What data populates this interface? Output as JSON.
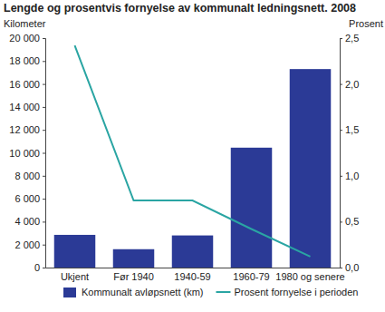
{
  "chart_data": {
    "type": "bar",
    "title": "Lengde og prosentvis fornyelse av kommunalt ledningsnett. 2008",
    "ylabel": "Kilometer",
    "y2label": "Prosent",
    "categories": [
      "Ukjent",
      "Før 1940",
      "1940-59",
      "1960-79",
      "1980 og senere"
    ],
    "series": [
      {
        "name": "Kommunalt avløpsnett (km)",
        "type": "bar",
        "color": "#2b3a96",
        "values": [
          2850,
          1600,
          2800,
          10450,
          17300
        ]
      },
      {
        "name": "Prosent fornyelse i perioden",
        "type": "line",
        "axis": "y2",
        "color": "#2aa5a3",
        "values": [
          2.42,
          0.73,
          0.73,
          0.42,
          0.12
        ]
      }
    ],
    "ylim": [
      0,
      20000
    ],
    "yticks": [
      0,
      {
        "value": 2000,
        "label": "2 000"
      },
      {
        "value": 4000,
        "label": "4 000"
      },
      {
        "value": 6000,
        "label": "6 000"
      },
      {
        "value": 8000,
        "label": "8 000"
      },
      {
        "value": 10000,
        "label": "10 000"
      },
      {
        "value": 12000,
        "label": "12 000"
      },
      {
        "value": 14000,
        "label": "14 000"
      },
      {
        "value": 16000,
        "label": "16 000"
      },
      {
        "value": 18000,
        "label": "18 000"
      },
      {
        "value": 20000,
        "label": "20 000"
      }
    ],
    "y2lim": [
      0,
      2.5
    ],
    "y2ticks": [
      {
        "value": 0,
        "label": "0,0"
      },
      {
        "value": 0.5,
        "label": "0,5"
      },
      {
        "value": 1,
        "label": "1,0"
      },
      {
        "value": 1.5,
        "label": "1,5"
      },
      {
        "value": 2,
        "label": "2,0"
      },
      {
        "value": 2.5,
        "label": "2,5"
      }
    ],
    "grid": false,
    "legend": "bottom"
  }
}
